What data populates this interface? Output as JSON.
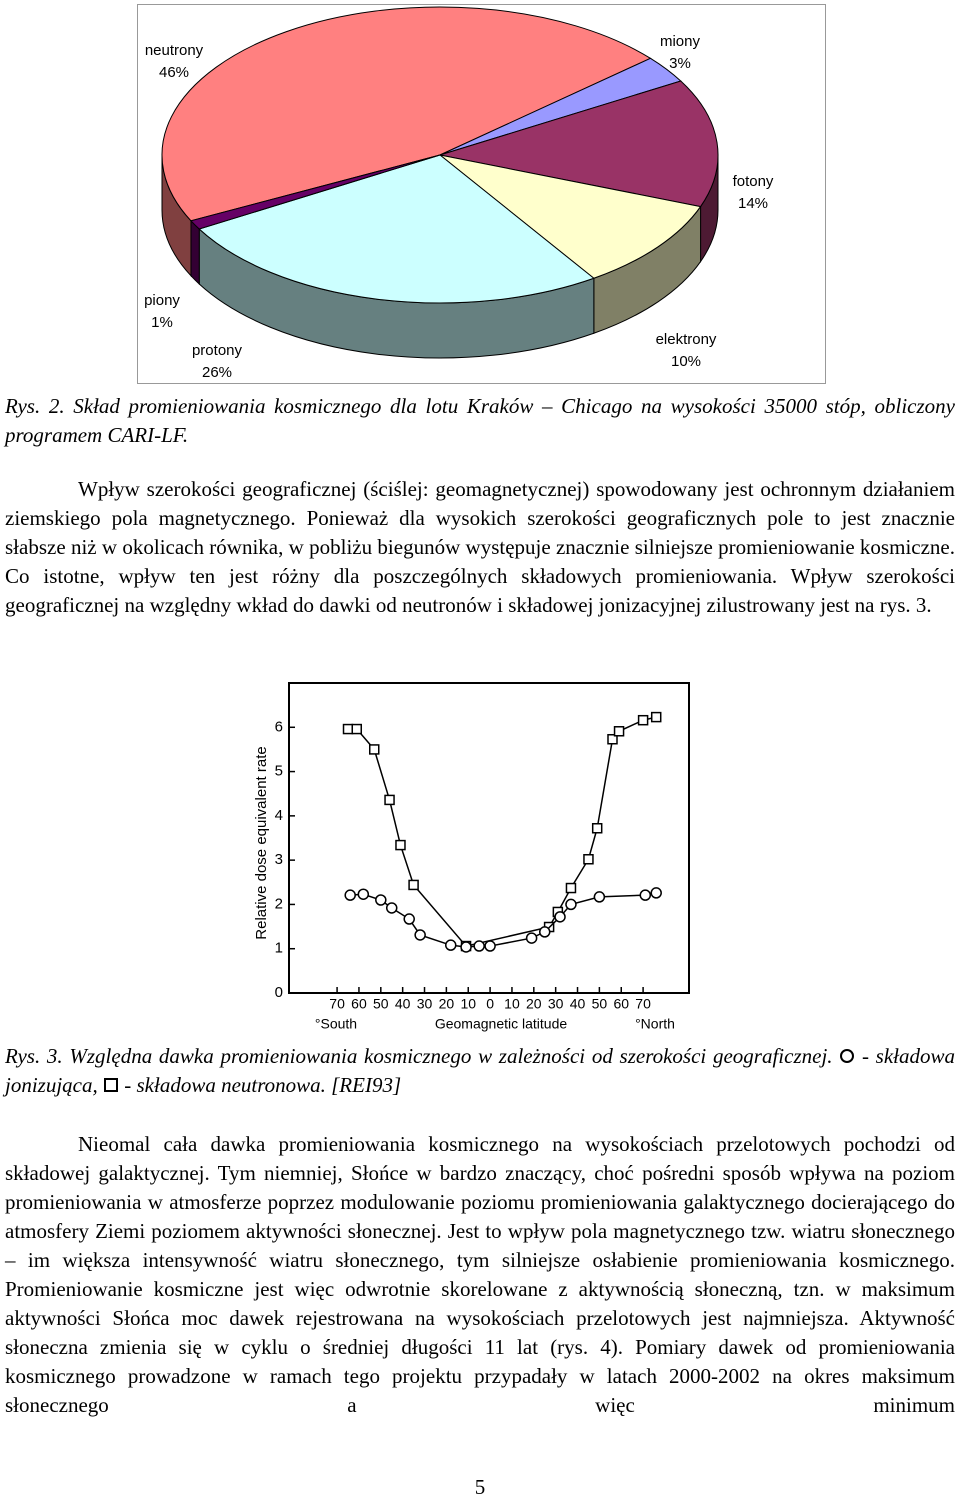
{
  "chart_data": [
    {
      "type": "pie",
      "categories": [
        "neutrony",
        "miony",
        "fotony",
        "elektrony",
        "protony",
        "piony"
      ],
      "values": [
        46,
        3,
        14,
        10,
        26,
        1
      ],
      "value_labels": [
        "46%",
        "3%",
        "14%",
        "10%",
        "26%",
        "1%"
      ],
      "colors": [
        "#ff8080",
        "#9999ff",
        "#993366",
        "#ffffcc",
        "#ccffff",
        "#660066"
      ]
    },
    {
      "type": "line",
      "ylabel": "Relative dose equivalent rate",
      "xlabel": "Geomagnetic latitude",
      "x_end_labels": [
        "°South",
        "°North"
      ],
      "xlim": [
        -92,
        91
      ],
      "ylim": [
        0,
        7
      ],
      "xticks": [
        {
          "value": -70,
          "label": "70"
        },
        {
          "value": -60,
          "label": "60"
        },
        {
          "value": -50,
          "label": "50"
        },
        {
          "value": -40,
          "label": "40"
        },
        {
          "value": -30,
          "label": "30"
        },
        {
          "value": -20,
          "label": "20"
        },
        {
          "value": -10,
          "label": "10"
        },
        0,
        10,
        20,
        30,
        40,
        50,
        60,
        70
      ],
      "yticks": [
        0,
        1,
        2,
        3,
        4,
        5,
        6
      ],
      "series": [
        {
          "marker": "square",
          "color": "#000000",
          "x": [
            -65,
            -61,
            -53,
            -46,
            -41,
            -35,
            -11,
            27,
            31,
            37,
            45,
            49,
            56,
            59,
            70,
            76
          ],
          "values": [
            5.96,
            5.96,
            5.5,
            4.36,
            3.34,
            2.44,
            1.06,
            1.49,
            1.83,
            2.37,
            3.02,
            3.72,
            5.73,
            5.91,
            6.16,
            6.23
          ]
        },
        {
          "marker": "circle",
          "color": "#000000",
          "x": [
            -64,
            -58,
            -50,
            -45,
            -37,
            -32,
            -18,
            -11,
            -5,
            0,
            19,
            25,
            32,
            37,
            50,
            71,
            76
          ],
          "values": [
            2.21,
            2.23,
            2.1,
            1.92,
            1.67,
            1.31,
            1.08,
            1.04,
            1.06,
            1.06,
            1.24,
            1.38,
            1.72,
            2.0,
            2.17,
            2.21,
            2.26
          ]
        }
      ]
    }
  ],
  "caption1": "Rys. 2. Skład promieniowania kosmicznego dla lotu Kraków – Chicago na wysokości 35000 stóp, obliczony programem CARI-LF.",
  "paragraph1": "Wpływ szerokości geograficznej (ściślej: geomagnetycznej) spowodowany jest ochronnym działaniem ziemskiego pola magnetycznego. Ponieważ dla wysokich szerokości geograficznych pole to jest znacznie słabsze niż w okolicach równika, w pobliżu biegunów występuje znacznie silniejsze promieniowanie kosmiczne. Co istotne, wpływ ten jest różny dla poszczególnych składowych promieniowania. Wpływ szerokości geograficznej na względny wkład do dawki od neutronów i składowej jonizacyjnej zilustrowany jest na rys. 3.",
  "caption2": {
    "text": "Rys. 3. Względna dawka promieniowania kosmicznego w zależności od szerokości geograficznej.",
    "circle_text": "- składowa jonizująca,",
    "square_text": "- składowa neutronowa. [REI93]"
  },
  "paragraph2": "Nieomal cała dawka promieniowania kosmicznego na wysokościach przelotowych pochodzi od składowej galaktycznej. Tym niemniej, Słońce w bardzo znaczący, choć pośredni sposób wpływa na poziom promieniowania w atmosferze poprzez modulowanie poziomu promieniowania galaktycznego docierającego do atmosfery Ziemi poziomem aktywności słonecznej. Jest to wpływ pola magnetycznego tzw. wiatru słonecznego – im większa intensywność wiatru słonecznego, tym silniejsze osłabienie promieniowania kosmicznego. Promieniowanie kosmiczne jest więc odwrotnie skorelowane z aktywnością słoneczną, tzn. w maksimum aktywności Słońca moc dawek rejestrowana na wysokościach przelotowych jest najmniejsza. Aktywność słoneczna zmienia się w cyklu o średniej długości 11 lat (rys. 4). Pomiary dawek od promieniowania kosmicznego prowadzone w ramach tego projektu przypadały w latach 2000-2002 na okres maksimum słonecznego a więc minimum",
  "page_number": "5"
}
